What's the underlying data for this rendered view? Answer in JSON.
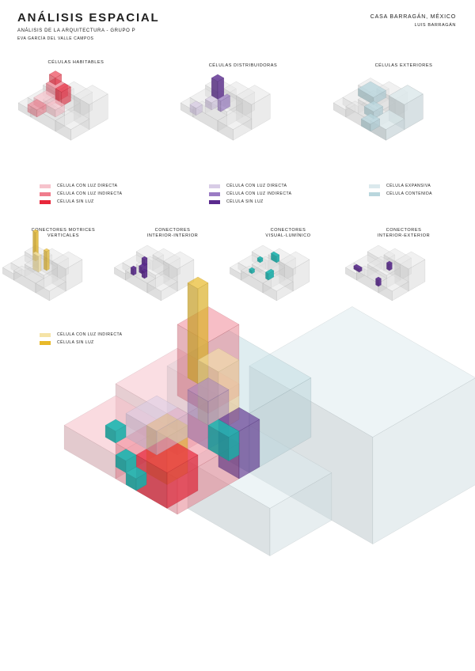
{
  "header": {
    "title": "ANÁLISIS ESPACIAL",
    "subtitle": "ANÁLISIS DE LA ARQUITECTURA - GRUPO P",
    "author": "EVA GARCÍA DEL VALLE CAMPOS",
    "place": "CASA BARRAGÁN, MÉXICO",
    "architect": "LUIS BARRAGÁN"
  },
  "panels": {
    "habitables": "CÉLULAS HABITABLES",
    "distribuidoras": "CÉLULAS DISTRIBUIDORAS",
    "exteriores": "CÉLULAS EXTERIORES",
    "motrices": "CONECTORES MOTRICES\nVERTICALES",
    "interior": "CONECTORES\nINTERIOR-INTERIOR",
    "visual": "CONECTORES\nVISUAL-LUMÍNICO",
    "exterior": "CONECTORES\nINTERIOR-EXTERIOR"
  },
  "legends": {
    "habitables": [
      "CÉLULA CON LUZ DIRECTA",
      "CÉLULA CON LUZ INDIRECTA",
      "CÉLULA SIN LUZ"
    ],
    "distribuidoras": [
      "CÉLULA CON LUZ DIRECTA",
      "CÉLULA CON LUZ INDIRECTA",
      "CÉLULA SIN LUZ"
    ],
    "exteriores": [
      "CÉLULA EXPANSIVA",
      "CÉLULA CONTENIDA"
    ],
    "motrices": [
      "CÉLULA CON LUZ INDIRECTA",
      "CÉLULA SIN LUZ"
    ]
  },
  "colors": {
    "red_light": "#f6c3cc",
    "red_mid": "#f07d8d",
    "red_dark": "#e8273b",
    "purple_light": "#d8cce6",
    "purple_mid": "#9b7cc4",
    "purple_dark": "#5a2a8e",
    "blue_light": "#dbe9ed",
    "blue_mid": "#b9d6dd",
    "yellow_light": "#f5e3a6",
    "yellow_dark": "#e8b92a",
    "teal": "#1db5b0",
    "grey": "#e6e6e6"
  }
}
